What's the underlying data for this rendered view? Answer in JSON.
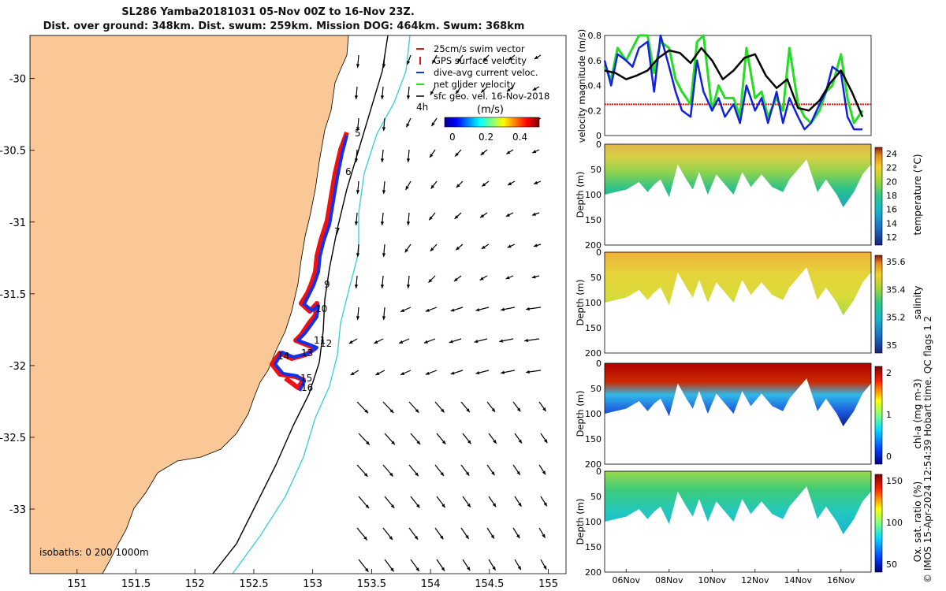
{
  "titles": {
    "line1": "SL286 Yamba20181031 05-Nov 00Z to 16-Nov 23Z.",
    "line2": "Dist. over ground: 348km. Dist. swum: 259km. Mission DOG: 464km. Swum: 368km"
  },
  "footer": "© IMOS 15-Apr-2024 12:54:39 Hobart time. QC flags 1  2",
  "colors": {
    "land": "#FAC896",
    "sea": "#FFFFFF",
    "isobath_200": "#000000",
    "isobath_1000": "#40D0D8",
    "track_red": "#EE1111",
    "track_blue": "#1133EE",
    "line_green": "#22DD22",
    "line_blue": "#1122DD",
    "line_black": "#000000"
  },
  "map": {
    "lon_ticks": [
      "151",
      "151.5",
      "152",
      "152.5",
      "153",
      "153.5",
      "154",
      "154.5",
      "155"
    ],
    "lat_ticks": [
      "-30",
      "-30.5",
      "-31",
      "-31.5",
      "-32",
      "-32.5",
      "-33"
    ],
    "xlim": [
      150.6,
      155.15
    ],
    "ylim": [
      -33.45,
      -29.7
    ],
    "legend": {
      "items": [
        "25cm/s swim vector",
        "GPS surface velocity",
        "dive-avg current veloc.",
        "net glider velocity",
        "sfc geo. vel. 16-Nov-2018"
      ],
      "colorbar_title": "(m/s)",
      "colorbar_ticks": [
        "0",
        "0.2",
        "0.4"
      ]
    },
    "isobath_label": "isobaths: 0   200  1000m",
    "time_labels": [
      "4h",
      "5",
      "6",
      "7",
      "9",
      "10",
      "11",
      "12",
      "13",
      "14",
      "15",
      "16"
    ]
  },
  "chart_data": [
    {
      "type": "line",
      "title": "",
      "ylabel": "velocity magnitude (m/s)",
      "ylim": [
        0,
        0.8
      ],
      "yticks": [
        "0",
        "0.2",
        "0.4",
        "0.6",
        "0.8"
      ],
      "swim_reference": 0.25,
      "series": [
        {
          "color": "green",
          "x": [
            5,
            5.3,
            5.6,
            6.0,
            6.3,
            6.6,
            7.0,
            7.3,
            7.6,
            8.0,
            8.3,
            8.6,
            9.0,
            9.3,
            9.6,
            10.0,
            10.3,
            10.6,
            11.0,
            11.3,
            11.6,
            12.0,
            12.3,
            12.6,
            13.0,
            13.3,
            13.6,
            14.0,
            14.3,
            14.6,
            15.0,
            15.3,
            15.6,
            16.0,
            16.3,
            16.6,
            17.0
          ],
          "y": [
            0.55,
            0.45,
            0.7,
            0.6,
            0.7,
            0.8,
            0.8,
            0.5,
            0.75,
            0.7,
            0.45,
            0.35,
            0.25,
            0.75,
            0.8,
            0.2,
            0.4,
            0.3,
            0.3,
            0.15,
            0.7,
            0.3,
            0.35,
            0.15,
            0.3,
            0.2,
            0.7,
            0.25,
            0.15,
            0.1,
            0.2,
            0.35,
            0.4,
            0.65,
            0.3,
            0.1,
            0.2
          ]
        },
        {
          "color": "blue",
          "x": [
            5,
            5.3,
            5.6,
            6.0,
            6.3,
            6.6,
            7.0,
            7.3,
            7.6,
            8.0,
            8.3,
            8.6,
            9.0,
            9.3,
            9.6,
            10.0,
            10.3,
            10.6,
            11.0,
            11.3,
            11.6,
            12.0,
            12.3,
            12.6,
            13.0,
            13.3,
            13.6,
            14.0,
            14.3,
            14.6,
            15.0,
            15.3,
            15.6,
            16.0,
            16.3,
            16.6,
            17.0
          ],
          "y": [
            0.6,
            0.4,
            0.65,
            0.6,
            0.55,
            0.7,
            0.75,
            0.35,
            0.8,
            0.55,
            0.35,
            0.2,
            0.15,
            0.6,
            0.35,
            0.2,
            0.3,
            0.15,
            0.25,
            0.1,
            0.4,
            0.2,
            0.3,
            0.1,
            0.35,
            0.1,
            0.3,
            0.15,
            0.05,
            0.1,
            0.25,
            0.35,
            0.55,
            0.5,
            0.15,
            0.05,
            0.05
          ]
        },
        {
          "color": "black",
          "x": [
            5,
            5.5,
            6.0,
            6.5,
            7.0,
            7.5,
            8.0,
            8.5,
            9.0,
            9.5,
            10.0,
            10.5,
            11.0,
            11.5,
            12.0,
            12.5,
            13.0,
            13.5,
            14.0,
            14.5,
            15.0,
            15.5,
            16.0,
            16.5,
            17.0
          ],
          "y": [
            0.52,
            0.5,
            0.45,
            0.48,
            0.52,
            0.62,
            0.68,
            0.66,
            0.58,
            0.7,
            0.6,
            0.45,
            0.52,
            0.62,
            0.65,
            0.48,
            0.38,
            0.45,
            0.22,
            0.2,
            0.28,
            0.42,
            0.52,
            0.35,
            0.15
          ]
        }
      ]
    },
    {
      "type": "heatmap",
      "ylabel": "Depth (m)",
      "ylim": [
        200,
        0
      ],
      "yticks": [
        "0",
        "50",
        "100",
        "150",
        "200"
      ],
      "colorbar_label": "temperature (°C)",
      "colorbar_ticks": [
        "12",
        "14",
        "16",
        "18",
        "20",
        "22",
        "24"
      ]
    },
    {
      "type": "heatmap",
      "ylabel": "Depth (m)",
      "ylim": [
        200,
        0
      ],
      "yticks": [
        "0",
        "50",
        "100",
        "150",
        "200"
      ],
      "colorbar_label": "salinity",
      "colorbar_ticks": [
        "35",
        "35.2",
        "35.4",
        "35.6"
      ]
    },
    {
      "type": "heatmap",
      "ylabel": "Depth (m)",
      "ylim": [
        200,
        0
      ],
      "yticks": [
        "0",
        "50",
        "100",
        "150",
        "200"
      ],
      "colorbar_label": "chl-a (mg m-3)",
      "colorbar_ticks": [
        "0",
        "1",
        "2"
      ]
    },
    {
      "type": "heatmap",
      "ylabel": "Depth (m)",
      "ylim": [
        200,
        0
      ],
      "yticks": [
        "0",
        "50",
        "100",
        "150",
        "200"
      ],
      "colorbar_label": "Ox. sat. ratio (%)",
      "colorbar_ticks": [
        "50",
        "100",
        "150"
      ],
      "xticks": [
        "06Nov",
        "08Nov",
        "10Nov",
        "12Nov",
        "14Nov",
        "16Nov"
      ]
    }
  ]
}
